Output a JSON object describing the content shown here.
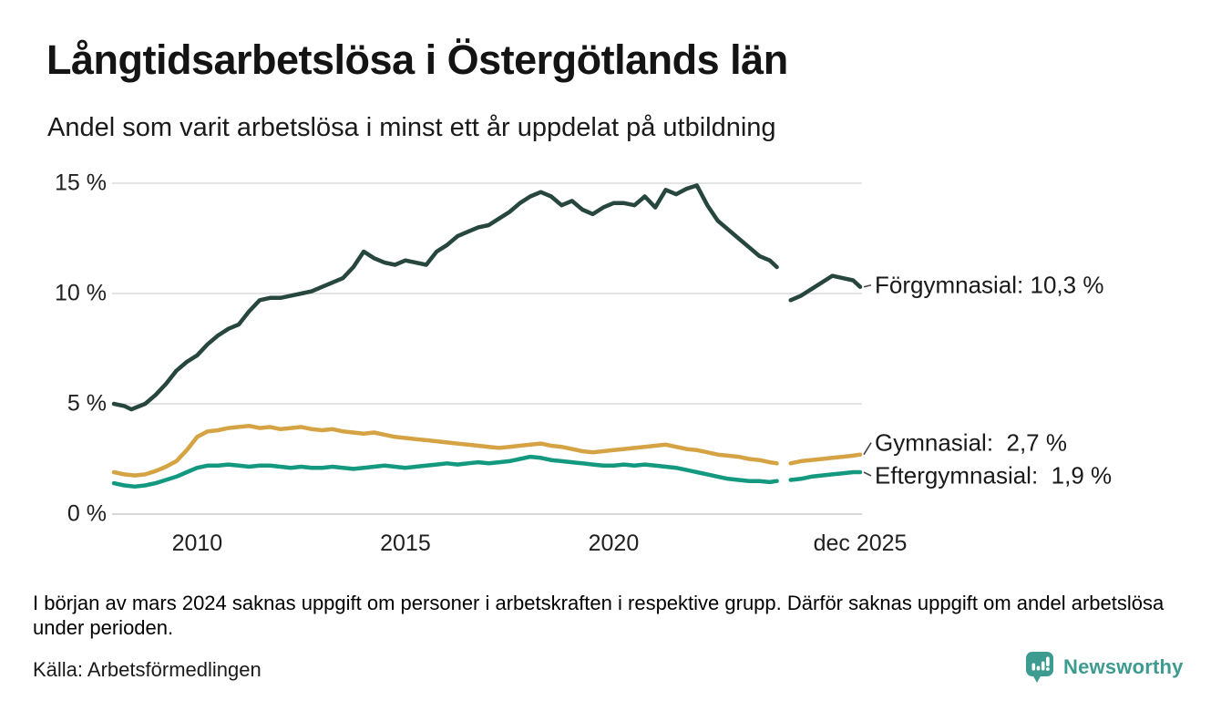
{
  "title": "Långtidsarbetslösa i Östergötlands län",
  "subtitle": "Andel som varit arbetslösa i minst ett år uppdelat på utbildning",
  "footnote": "I början av mars 2024 saknas uppgift om personer i arbetskraften i respektive grupp. Därför saknas uppgift om andel arbetslösa under perioden.",
  "source": "Källa: Arbetsförmedlingen",
  "branding": {
    "name": "Newsworthy",
    "logo_icon": "speech-bubble-bar-chart-icon",
    "color": "#3D9B90"
  },
  "colors": {
    "background": "#ffffff",
    "text": "#141414",
    "gridline": "#e4e4e4",
    "gridline_zero": "#d7d7d7",
    "connector": "#444444",
    "forgymnasial": "#26463E",
    "gymnasial": "#D6A344",
    "eftergymnasial": "#13997F"
  },
  "chart_data": {
    "type": "line",
    "title": "Långtidsarbetslösa i Östergötlands län",
    "subtitle": "Andel som varit arbetslösa i minst ett år uppdelat på utbildning",
    "xlabel": "",
    "ylabel": "",
    "unit": "%",
    "grid": true,
    "legend_position": "end-of-line-labels",
    "xlim": [
      2008.0,
      2025.92
    ],
    "ylim": [
      0,
      15
    ],
    "data_gap": "början av mars 2024 (uppgift saknas)",
    "y_ticks": [
      {
        "value": 15,
        "label": "15 %"
      },
      {
        "value": 10,
        "label": "10 %"
      },
      {
        "value": 5,
        "label": "5 %"
      },
      {
        "value": 0,
        "label": "0 %"
      }
    ],
    "x_ticks": [
      {
        "value": 2010,
        "label": "2010"
      },
      {
        "value": 2015,
        "label": "2015"
      },
      {
        "value": 2020,
        "label": "2020"
      },
      {
        "value": 2025.92,
        "label": "dec 2025"
      }
    ],
    "series": [
      {
        "name": "Förgymnasial",
        "end_label": "Förgymnasial: 10,3 %",
        "end_value_text": "10,3 %",
        "end_value": 10.3,
        "color": "#26463E",
        "points": [
          [
            2008,
            5.0
          ],
          [
            2008.25,
            4.9
          ],
          [
            2008.42,
            4.75
          ],
          [
            2008.75,
            5.0
          ],
          [
            2009,
            5.4
          ],
          [
            2009.25,
            5.9
          ],
          [
            2009.5,
            6.5
          ],
          [
            2009.75,
            6.9
          ],
          [
            2010,
            7.2
          ],
          [
            2010.25,
            7.7
          ],
          [
            2010.5,
            8.1
          ],
          [
            2010.75,
            8.4
          ],
          [
            2011,
            8.6
          ],
          [
            2011.25,
            9.2
          ],
          [
            2011.5,
            9.7
          ],
          [
            2011.75,
            9.8
          ],
          [
            2012,
            9.8
          ],
          [
            2012.25,
            9.9
          ],
          [
            2012.5,
            10.0
          ],
          [
            2012.75,
            10.1
          ],
          [
            2013,
            10.3
          ],
          [
            2013.25,
            10.5
          ],
          [
            2013.5,
            10.7
          ],
          [
            2013.75,
            11.2
          ],
          [
            2014,
            11.9
          ],
          [
            2014.25,
            11.6
          ],
          [
            2014.5,
            11.4
          ],
          [
            2014.75,
            11.3
          ],
          [
            2015,
            11.5
          ],
          [
            2015.25,
            11.4
          ],
          [
            2015.5,
            11.3
          ],
          [
            2015.75,
            11.9
          ],
          [
            2016,
            12.2
          ],
          [
            2016.25,
            12.6
          ],
          [
            2016.5,
            12.8
          ],
          [
            2016.75,
            13.0
          ],
          [
            2017,
            13.1
          ],
          [
            2017.25,
            13.4
          ],
          [
            2017.5,
            13.7
          ],
          [
            2017.75,
            14.1
          ],
          [
            2018,
            14.4
          ],
          [
            2018.25,
            14.6
          ],
          [
            2018.5,
            14.4
          ],
          [
            2018.75,
            14.0
          ],
          [
            2019,
            14.2
          ],
          [
            2019.25,
            13.8
          ],
          [
            2019.5,
            13.6
          ],
          [
            2019.75,
            13.9
          ],
          [
            2020,
            14.1
          ],
          [
            2020.25,
            14.1
          ],
          [
            2020.5,
            14.0
          ],
          [
            2020.75,
            14.4
          ],
          [
            2021,
            13.9
          ],
          [
            2021.25,
            14.7
          ],
          [
            2021.5,
            14.5
          ],
          [
            2021.75,
            14.75
          ],
          [
            2022,
            14.9
          ],
          [
            2022.25,
            14.0
          ],
          [
            2022.5,
            13.3
          ],
          [
            2022.75,
            12.9
          ],
          [
            2023,
            12.5
          ],
          [
            2023.25,
            12.1
          ],
          [
            2023.5,
            11.7
          ],
          [
            2023.75,
            11.5
          ],
          [
            2023.92,
            11.2
          ],
          [
            2024.08,
            null
          ],
          [
            2024.25,
            9.7
          ],
          [
            2024.5,
            9.9
          ],
          [
            2024.75,
            10.2
          ],
          [
            2025,
            10.5
          ],
          [
            2025.25,
            10.8
          ],
          [
            2025.5,
            10.7
          ],
          [
            2025.75,
            10.6
          ],
          [
            2025.92,
            10.3
          ]
        ]
      },
      {
        "name": "Gymnasial",
        "end_label": "Gymnasial:  2,7 %",
        "end_value_text": "2,7 %",
        "end_value": 2.7,
        "color": "#D6A344",
        "points": [
          [
            2008,
            1.9
          ],
          [
            2008.25,
            1.8
          ],
          [
            2008.5,
            1.75
          ],
          [
            2008.75,
            1.8
          ],
          [
            2009,
            1.95
          ],
          [
            2009.25,
            2.15
          ],
          [
            2009.5,
            2.4
          ],
          [
            2009.75,
            2.9
          ],
          [
            2010,
            3.5
          ],
          [
            2010.25,
            3.75
          ],
          [
            2010.5,
            3.8
          ],
          [
            2010.75,
            3.9
          ],
          [
            2011,
            3.95
          ],
          [
            2011.25,
            4.0
          ],
          [
            2011.5,
            3.9
          ],
          [
            2011.75,
            3.95
          ],
          [
            2012,
            3.85
          ],
          [
            2012.25,
            3.9
          ],
          [
            2012.5,
            3.95
          ],
          [
            2012.75,
            3.85
          ],
          [
            2013,
            3.8
          ],
          [
            2013.25,
            3.85
          ],
          [
            2013.5,
            3.75
          ],
          [
            2013.75,
            3.7
          ],
          [
            2014,
            3.65
          ],
          [
            2014.25,
            3.7
          ],
          [
            2014.5,
            3.6
          ],
          [
            2014.75,
            3.5
          ],
          [
            2015,
            3.45
          ],
          [
            2015.25,
            3.4
          ],
          [
            2015.5,
            3.35
          ],
          [
            2015.75,
            3.3
          ],
          [
            2016,
            3.25
          ],
          [
            2016.25,
            3.2
          ],
          [
            2016.5,
            3.15
          ],
          [
            2016.75,
            3.1
          ],
          [
            2017,
            3.05
          ],
          [
            2017.25,
            3.0
          ],
          [
            2017.5,
            3.05
          ],
          [
            2017.75,
            3.1
          ],
          [
            2018,
            3.15
          ],
          [
            2018.25,
            3.2
          ],
          [
            2018.5,
            3.1
          ],
          [
            2018.75,
            3.05
          ],
          [
            2019,
            2.95
          ],
          [
            2019.25,
            2.85
          ],
          [
            2019.5,
            2.8
          ],
          [
            2019.75,
            2.85
          ],
          [
            2020,
            2.9
          ],
          [
            2020.25,
            2.95
          ],
          [
            2020.5,
            3.0
          ],
          [
            2020.75,
            3.05
          ],
          [
            2021,
            3.1
          ],
          [
            2021.25,
            3.15
          ],
          [
            2021.5,
            3.05
          ],
          [
            2021.75,
            2.95
          ],
          [
            2022,
            2.9
          ],
          [
            2022.25,
            2.8
          ],
          [
            2022.5,
            2.7
          ],
          [
            2022.75,
            2.65
          ],
          [
            2023,
            2.6
          ],
          [
            2023.25,
            2.5
          ],
          [
            2023.5,
            2.45
          ],
          [
            2023.75,
            2.35
          ],
          [
            2023.92,
            2.3
          ],
          [
            2024.08,
            null
          ],
          [
            2024.25,
            2.3
          ],
          [
            2024.5,
            2.4
          ],
          [
            2024.75,
            2.45
          ],
          [
            2025,
            2.5
          ],
          [
            2025.25,
            2.55
          ],
          [
            2025.5,
            2.6
          ],
          [
            2025.75,
            2.65
          ],
          [
            2025.92,
            2.7
          ]
        ]
      },
      {
        "name": "Eftergymnasial",
        "end_label": "Eftergymnasial:  1,9 %",
        "end_value_text": "1,9 %",
        "end_value": 1.9,
        "color": "#13997F",
        "points": [
          [
            2008,
            1.4
          ],
          [
            2008.25,
            1.3
          ],
          [
            2008.5,
            1.25
          ],
          [
            2008.75,
            1.3
          ],
          [
            2009,
            1.4
          ],
          [
            2009.25,
            1.55
          ],
          [
            2009.5,
            1.7
          ],
          [
            2009.75,
            1.9
          ],
          [
            2010,
            2.1
          ],
          [
            2010.25,
            2.2
          ],
          [
            2010.5,
            2.2
          ],
          [
            2010.75,
            2.25
          ],
          [
            2011,
            2.2
          ],
          [
            2011.25,
            2.15
          ],
          [
            2011.5,
            2.2
          ],
          [
            2011.75,
            2.2
          ],
          [
            2012,
            2.15
          ],
          [
            2012.25,
            2.1
          ],
          [
            2012.5,
            2.15
          ],
          [
            2012.75,
            2.1
          ],
          [
            2013,
            2.1
          ],
          [
            2013.25,
            2.15
          ],
          [
            2013.5,
            2.1
          ],
          [
            2013.75,
            2.05
          ],
          [
            2014,
            2.1
          ],
          [
            2014.25,
            2.15
          ],
          [
            2014.5,
            2.2
          ],
          [
            2014.75,
            2.15
          ],
          [
            2015,
            2.1
          ],
          [
            2015.25,
            2.15
          ],
          [
            2015.5,
            2.2
          ],
          [
            2015.75,
            2.25
          ],
          [
            2016,
            2.3
          ],
          [
            2016.25,
            2.25
          ],
          [
            2016.5,
            2.3
          ],
          [
            2016.75,
            2.35
          ],
          [
            2017,
            2.3
          ],
          [
            2017.25,
            2.35
          ],
          [
            2017.5,
            2.4
          ],
          [
            2017.75,
            2.5
          ],
          [
            2018,
            2.6
          ],
          [
            2018.25,
            2.55
          ],
          [
            2018.5,
            2.45
          ],
          [
            2018.75,
            2.4
          ],
          [
            2019,
            2.35
          ],
          [
            2019.25,
            2.3
          ],
          [
            2019.5,
            2.25
          ],
          [
            2019.75,
            2.2
          ],
          [
            2020,
            2.2
          ],
          [
            2020.25,
            2.25
          ],
          [
            2020.5,
            2.2
          ],
          [
            2020.75,
            2.25
          ],
          [
            2021,
            2.2
          ],
          [
            2021.25,
            2.15
          ],
          [
            2021.5,
            2.1
          ],
          [
            2021.75,
            2.0
          ],
          [
            2022,
            1.9
          ],
          [
            2022.25,
            1.8
          ],
          [
            2022.5,
            1.7
          ],
          [
            2022.75,
            1.6
          ],
          [
            2023,
            1.55
          ],
          [
            2023.25,
            1.5
          ],
          [
            2023.5,
            1.5
          ],
          [
            2023.75,
            1.45
          ],
          [
            2023.92,
            1.5
          ],
          [
            2024.08,
            null
          ],
          [
            2024.25,
            1.55
          ],
          [
            2024.5,
            1.6
          ],
          [
            2024.75,
            1.7
          ],
          [
            2025,
            1.75
          ],
          [
            2025.25,
            1.8
          ],
          [
            2025.5,
            1.85
          ],
          [
            2025.75,
            1.9
          ],
          [
            2025.92,
            1.9
          ]
        ]
      }
    ]
  }
}
